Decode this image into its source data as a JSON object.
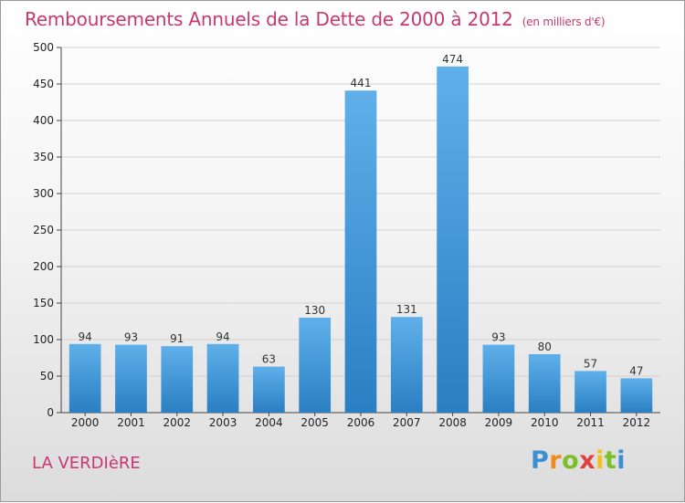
{
  "title": "Remboursements Annuels de la Dette de 2000 à 2012",
  "unit": "(en milliers d'€)",
  "commune": "LA VERDIèRE",
  "logo": {
    "letters": [
      "P",
      "r",
      "o",
      "x",
      "i",
      "t",
      "i"
    ]
  },
  "chart_data": {
    "type": "bar",
    "categories": [
      "2000",
      "2001",
      "2002",
      "2003",
      "2004",
      "2005",
      "2006",
      "2007",
      "2008",
      "2009",
      "2010",
      "2011",
      "2012"
    ],
    "values": [
      94,
      93,
      91,
      94,
      63,
      130,
      441,
      131,
      474,
      93,
      80,
      57,
      47
    ],
    "data_labels": [
      "94",
      "93",
      "91",
      "94",
      "63",
      "130",
      "441",
      "131",
      "474",
      "93",
      "80",
      "57",
      "47"
    ],
    "ylim": [
      0,
      500
    ],
    "yticks": [
      0,
      50,
      100,
      150,
      200,
      250,
      300,
      350,
      400,
      450,
      500
    ],
    "grid": true,
    "bar_color": "#3d95d9",
    "title_color": "#c8386e"
  }
}
